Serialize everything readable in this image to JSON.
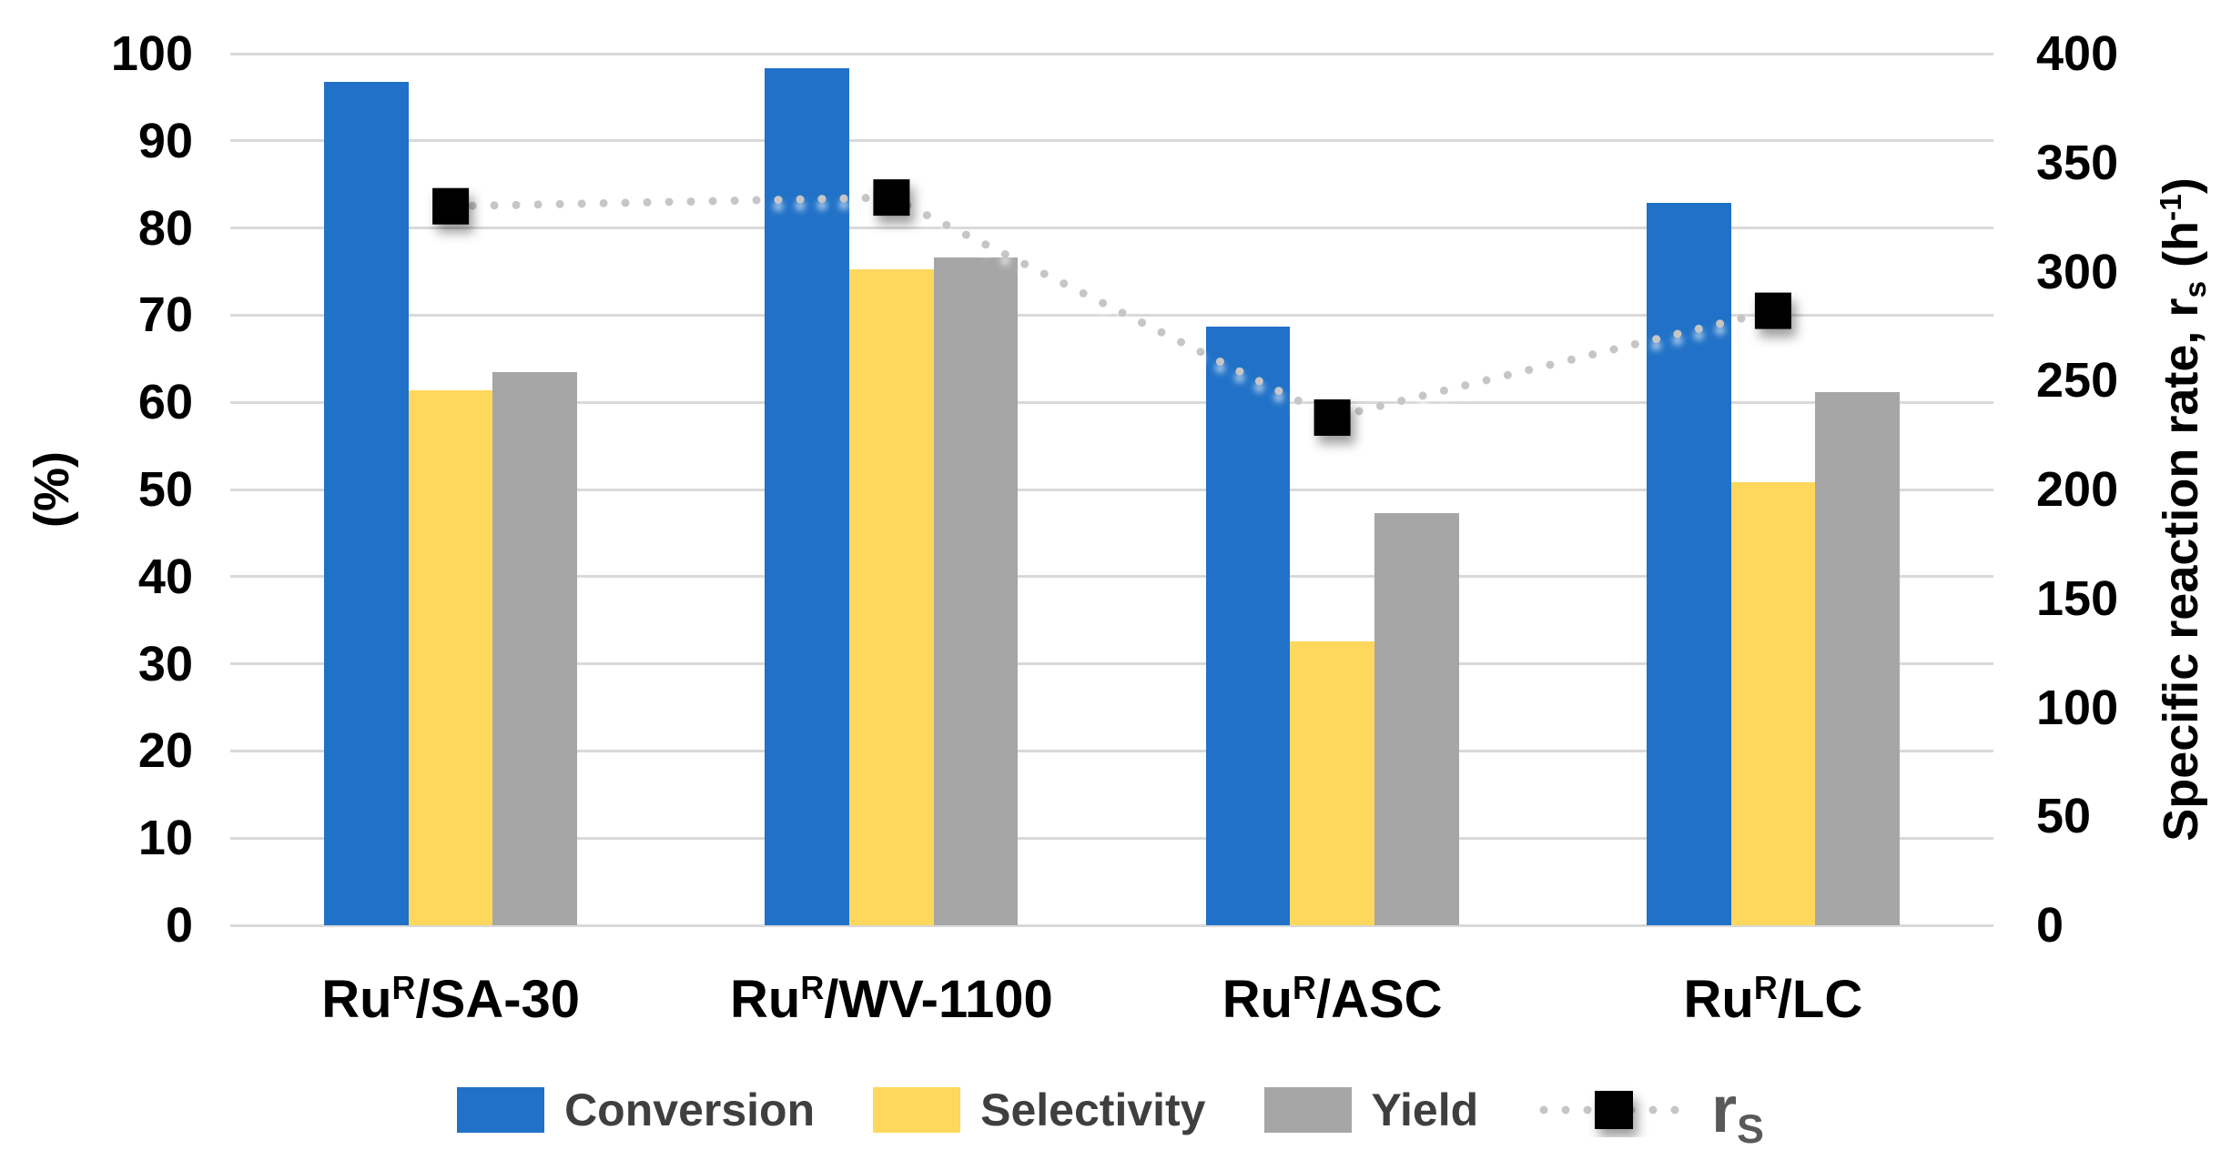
{
  "chart_data": {
    "type": "bar",
    "subtype": "grouped-bars-with-line-overlay",
    "title": "",
    "categories": [
      {
        "pre": "Ru",
        "sup": "R",
        "post": "/SA-30"
      },
      {
        "pre": "Ru",
        "sup": "R",
        "post": "/WV-1100"
      },
      {
        "pre": "Ru",
        "sup": "R",
        "post": "/ASC"
      },
      {
        "pre": "Ru",
        "sup": "R",
        "post": "/LC"
      }
    ],
    "series": [
      {
        "name": "Conversion",
        "type": "bar",
        "axis": "left",
        "color": "#2071C7",
        "values": [
          96.8,
          98.3,
          68.7,
          82.9
        ]
      },
      {
        "name": "Selectivity",
        "type": "bar",
        "axis": "left",
        "color": "#FDD85D",
        "values": [
          61.4,
          75.3,
          32.6,
          50.8
        ]
      },
      {
        "name": "Yield",
        "type": "bar",
        "axis": "left",
        "color": "#A6A6A6",
        "values": [
          63.5,
          76.6,
          47.3,
          61.2
        ]
      },
      {
        "name": "rS",
        "name_segments": [
          {
            "t": "r"
          },
          {
            "t": "S",
            "sub": true
          }
        ],
        "type": "line",
        "axis": "right",
        "color": "#C6C6C6",
        "marker_color": "#000000",
        "values": [
          330,
          334,
          233,
          282
        ]
      }
    ],
    "left_axis": {
      "title": "(%)",
      "min": 0,
      "max": 100,
      "ticks": [
        100,
        90,
        80,
        70,
        60,
        50,
        40,
        30,
        20,
        10,
        0
      ]
    },
    "right_axis": {
      "title_segments": [
        {
          "t": "Specific reaction rate, r"
        },
        {
          "t": "s",
          "sub": true
        },
        {
          "t": " (h"
        },
        {
          "t": "-1",
          "sup": true
        },
        {
          "t": ")"
        }
      ],
      "min": 0,
      "max": 400,
      "ticks": [
        400,
        350,
        300,
        250,
        200,
        150,
        100,
        50,
        0
      ]
    },
    "grid": {
      "show": true,
      "color": "#D9D9D9"
    },
    "legend_position": "bottom"
  }
}
